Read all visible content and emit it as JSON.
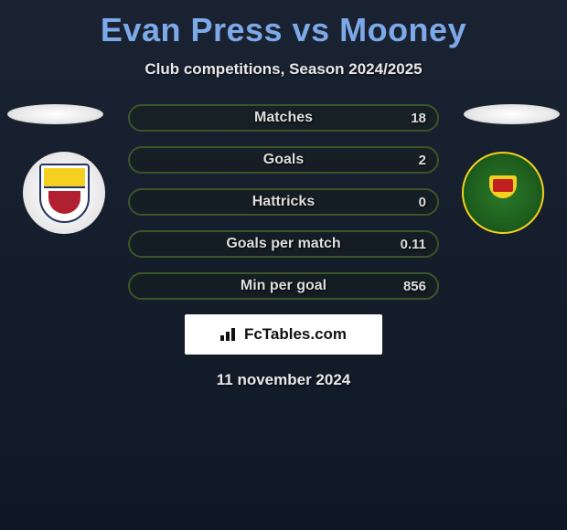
{
  "header": {
    "title": "Evan Press vs Mooney",
    "title_color": "#7da9e8",
    "subtitle": "Club competitions, Season 2024/2025"
  },
  "background": {
    "gradient_top": "#1a2332",
    "gradient_bottom": "#0f1824"
  },
  "players": {
    "left_oval_color": "#ffffff",
    "right_oval_color": "#ffffff"
  },
  "clubs": {
    "left": {
      "name": "club-crest-left",
      "badge_bg": "#ffffff",
      "colors": {
        "accent1": "#223366",
        "accent2": "#f5d020",
        "accent3": "#b02030"
      }
    },
    "right": {
      "name": "club-crest-right",
      "badge_bg": "#1e5e1e",
      "ring": "#f5d020",
      "colors": {
        "accent1": "#f5d020",
        "accent2": "#c02020"
      }
    }
  },
  "stats": {
    "row_border_color": "#3a5528",
    "label_color": "#dedede",
    "rows": [
      {
        "label": "Matches",
        "left": "",
        "right": "18"
      },
      {
        "label": "Goals",
        "left": "",
        "right": "2"
      },
      {
        "label": "Hattricks",
        "left": "",
        "right": "0"
      },
      {
        "label": "Goals per match",
        "left": "",
        "right": "0.11"
      },
      {
        "label": "Min per goal",
        "left": "",
        "right": "856"
      }
    ]
  },
  "attribution": {
    "text": "FcTables.com",
    "bg": "#ffffff",
    "text_color": "#111111"
  },
  "date": "11 november 2024"
}
